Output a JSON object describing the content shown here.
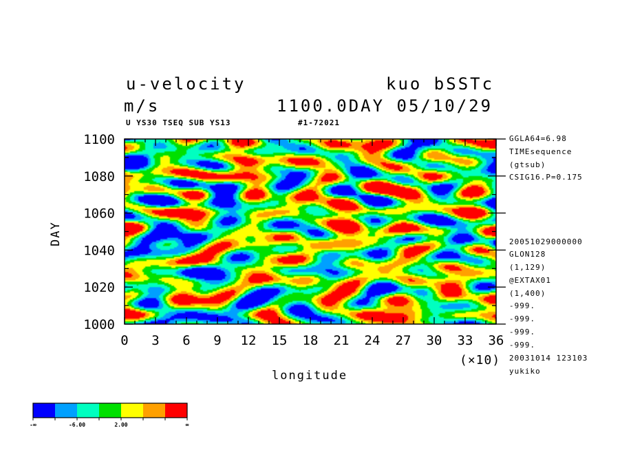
{
  "chart_data": {
    "type": "heatmap",
    "title": "u-velocity",
    "units": "m/s",
    "source": "kuo bSSTc",
    "time_label": "1100.0DAY 05/10/29",
    "subtitle_left": "U YS30 TSEQ SUB YS13",
    "subtitle_right": "#1-72021",
    "xlabel": "longitude",
    "ylabel": "DAY",
    "x_multiplier": "(×10)",
    "xlim": [
      0,
      36
    ],
    "ylim": [
      1000,
      1100
    ],
    "x_ticks": [
      "0",
      "3",
      "6",
      "9",
      "12",
      "15",
      "18",
      "21",
      "24",
      "27",
      "30",
      "33",
      "36"
    ],
    "y_ticks": [
      "1000",
      "1020",
      "1040",
      "1060",
      "1080",
      "1100"
    ],
    "color_levels": [
      "#0000ff",
      "#00a0ff",
      "#00ffc0",
      "#00e000",
      "#ffff00",
      "#ffa000",
      "#ff0000"
    ],
    "colorbar_labels": [
      "-∞",
      "-6.00",
      "2.00",
      "∞"
    ],
    "right_info": [
      "GGLA64=6.98",
      "TIMEsequence",
      "(gtsub)",
      "CSIG16.P=0.175",
      "20051029000000",
      "GLON128",
      "(1,129)",
      "@EXTAX01",
      "(1,400)",
      "-999.",
      "-999.",
      "-999.",
      "-999.",
      "20031014 123103",
      "yukiko"
    ]
  }
}
